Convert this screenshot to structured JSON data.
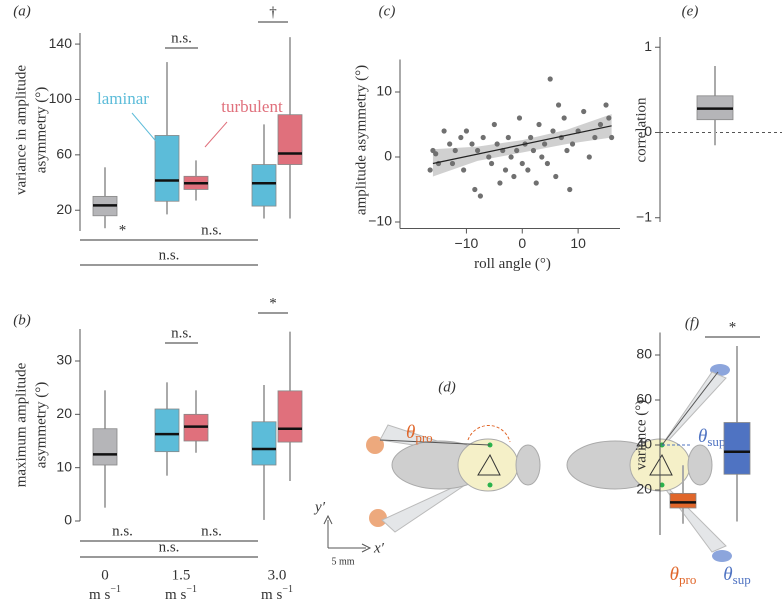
{
  "chart_data": [
    {
      "type": "box",
      "panel": "(a)",
      "ylabel": [
        "variance in amplitude",
        "asymmetry (°)"
      ],
      "ylim": [
        5,
        148
      ],
      "yticks": [
        20,
        60,
        100,
        140
      ],
      "series": [
        {
          "color": "#b5b5b8",
          "boxes": [
            {
              "low": 7,
              "q1": 16,
              "median": 23.5,
              "q3": 30,
              "high": 51
            },
            null,
            null
          ]
        },
        {
          "name": "laminar",
          "color": "#5cbcd9",
          "boxes": [
            null,
            {
              "low": 17,
              "q1": 26.5,
              "median": 41.5,
              "q3": 74,
              "high": 127
            },
            {
              "low": 14,
              "q1": 23,
              "median": 39.5,
              "q3": 53,
              "high": 82
            }
          ]
        },
        {
          "name": "turbulent",
          "color": "#e0707c",
          "boxes": [
            null,
            {
              "low": 27,
              "q1": 35,
              "median": 39.5,
              "q3": 44.5,
              "high": 56
            },
            {
              "low": 14,
              "q1": 53,
              "median": 61,
              "q3": 89,
              "high": 145
            }
          ]
        }
      ],
      "annotations": [
        "n.s.",
        "†",
        "*",
        "n.s.",
        "n.s."
      ]
    },
    {
      "type": "box",
      "panel": "(b)",
      "ylabel": [
        "maximum amplitude",
        "asymmetry (°)"
      ],
      "ylim": [
        0,
        36
      ],
      "yticks": [
        0,
        10,
        20,
        30
      ],
      "categories": [
        "0",
        "1.5",
        "3.0"
      ],
      "category_unit": {
        "base": "m s",
        "exp": "−1"
      },
      "series": [
        {
          "color": "#b5b5b8",
          "boxes": [
            {
              "low": 2.5,
              "q1": 10.5,
              "median": 12.5,
              "q3": 17.3,
              "high": 24.5
            },
            null,
            null
          ]
        },
        {
          "color": "#5cbcd9",
          "boxes": [
            null,
            {
              "low": 8.5,
              "q1": 13,
              "median": 16.3,
              "q3": 21,
              "high": 26
            },
            {
              "low": 0.2,
              "q1": 10.5,
              "median": 13.5,
              "q3": 18.6,
              "high": 25.5
            }
          ]
        },
        {
          "color": "#e0707c",
          "boxes": [
            null,
            {
              "low": 12.8,
              "q1": 15,
              "median": 17.7,
              "q3": 20,
              "high": 24.5
            },
            {
              "low": 7.5,
              "q1": 14.8,
              "median": 17.3,
              "q3": 24.4,
              "high": 35.5
            }
          ]
        }
      ],
      "annotations": [
        "n.s.",
        "*",
        "n.s.",
        "n.s.",
        "n.s."
      ]
    },
    {
      "type": "scatter",
      "panel": "(c)",
      "xlabel": "roll angle (°)",
      "ylabel": "amplitude asymmetry (°)",
      "xlim": [
        -21,
        17.5
      ],
      "ylim": [
        -11,
        15
      ],
      "xticks": [
        {
          "value": -10,
          "label": "−10"
        },
        0,
        10
      ],
      "yticks": [
        {
          "value": -10,
          "label": "−10"
        },
        0,
        10
      ],
      "color": "#707070",
      "x": [
        -16.5,
        -16,
        -15.5,
        -15,
        -14,
        -13,
        -12.5,
        -12,
        -11,
        -10.5,
        -10,
        -9,
        -8.5,
        -8,
        -7.5,
        -7,
        -6,
        -5.5,
        -5,
        -4.5,
        -4,
        -3.5,
        -3,
        -2.5,
        -2,
        -1.5,
        -1,
        -0.5,
        0,
        0.5,
        1,
        1.5,
        2,
        2.5,
        3,
        3.5,
        4,
        4.5,
        5,
        5.5,
        6,
        6.5,
        7,
        7.5,
        8,
        8.5,
        9,
        10,
        11,
        12,
        13,
        14,
        15,
        15.5,
        16
      ],
      "values": [
        -2,
        1,
        0.5,
        -1,
        4,
        2,
        -1,
        1,
        3,
        -2,
        4,
        2,
        -5,
        1,
        -6,
        3,
        0,
        -1,
        5,
        2,
        -4,
        1,
        -2,
        3,
        0,
        -3,
        1,
        6,
        -1,
        2,
        -2,
        3,
        1,
        -4,
        5,
        0,
        2,
        -1,
        12,
        4,
        -3,
        8,
        3,
        6,
        1,
        -5,
        2,
        4,
        7,
        0,
        3,
        5,
        8,
        6,
        3
      ],
      "fit": {
        "x": [
          -16,
          16
        ],
        "values": [
          -1,
          4.8
        ]
      },
      "band": {
        "x": [
          -16,
          -8,
          0,
          8,
          16
        ],
        "lower": [
          -3,
          -0.6,
          0.7,
          2.0,
          3.0
        ],
        "upper": [
          1.2,
          1.6,
          2.6,
          4.2,
          6.6
        ]
      }
    },
    {
      "type": "box",
      "panel": "(e)",
      "ylabel": "correlation",
      "ylim": [
        -1.05,
        1.12
      ],
      "yticks": [
        {
          "value": -1,
          "label": "−1"
        },
        0,
        1
      ],
      "reference_line": 0,
      "series": [
        {
          "color": "#b5b5b8",
          "boxes": [
            {
              "low": -0.15,
              "q1": 0.15,
              "median": 0.28,
              "q3": 0.43,
              "high": 0.78
            }
          ]
        }
      ]
    },
    {
      "type": "box",
      "panel": "(f)",
      "ylabel": "variance (°)",
      "ylim": [
        0,
        90
      ],
      "yticks": [
        20,
        40,
        60,
        80
      ],
      "categories": [
        {
          "symbol": "θ",
          "sub": "pro"
        },
        {
          "symbol": "θ",
          "sub": "sup"
        }
      ],
      "series": [
        {
          "color": "#e0662a",
          "boxes": [
            {
              "low": 5,
              "q1": 12,
              "median": 14.5,
              "q3": 18.5,
              "high": 31
            },
            null
          ]
        },
        {
          "color": "#4f73c2",
          "boxes": [
            null,
            {
              "low": 6,
              "q1": 27,
              "median": 37,
              "q3": 50,
              "high": 84
            }
          ]
        }
      ],
      "annotations": [
        "*"
      ]
    }
  ],
  "diagram": {
    "panel": "(d)",
    "theta_pro": {
      "symbol": "θ",
      "sub": "pro"
    },
    "theta_sup": {
      "symbol": "θ",
      "sub": "sup"
    },
    "y_axis": "y′",
    "x_axis": "x′",
    "scale": "5 mm"
  }
}
